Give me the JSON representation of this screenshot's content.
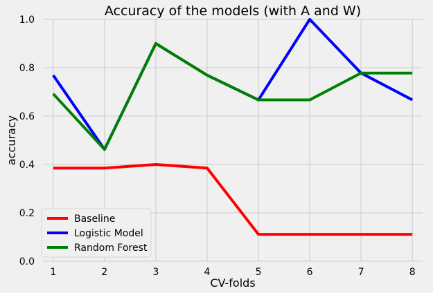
{
  "chart_data": {
    "type": "line",
    "title": "Accuracy of the models (with A and W)",
    "xlabel": "CV-folds",
    "ylabel": "accuracy",
    "x": [
      1,
      2,
      3,
      4,
      5,
      6,
      7,
      8
    ],
    "xlim": [
      0.8,
      8.2
    ],
    "ylim": [
      0.0,
      1.0
    ],
    "xticks": [
      "1",
      "2",
      "3",
      "4",
      "5",
      "6",
      "7",
      "8"
    ],
    "yticks": [
      "0.0",
      "0.2",
      "0.4",
      "0.6",
      "0.8",
      "1.0"
    ],
    "grid": true,
    "legend_position": "lower-left",
    "series": [
      {
        "name": "Baseline",
        "color": "#ff0000",
        "values": [
          0.385,
          0.385,
          0.4,
          0.385,
          0.111,
          0.111,
          0.111,
          0.111
        ]
      },
      {
        "name": "Logistic Model",
        "color": "#0000ff",
        "values": [
          0.769,
          0.462,
          0.9,
          0.769,
          0.667,
          1.0,
          0.778,
          0.667
        ]
      },
      {
        "name": "Random Forest",
        "color": "#008000",
        "values": [
          0.692,
          0.462,
          0.9,
          0.769,
          0.667,
          0.667,
          0.778,
          0.778
        ]
      }
    ]
  }
}
